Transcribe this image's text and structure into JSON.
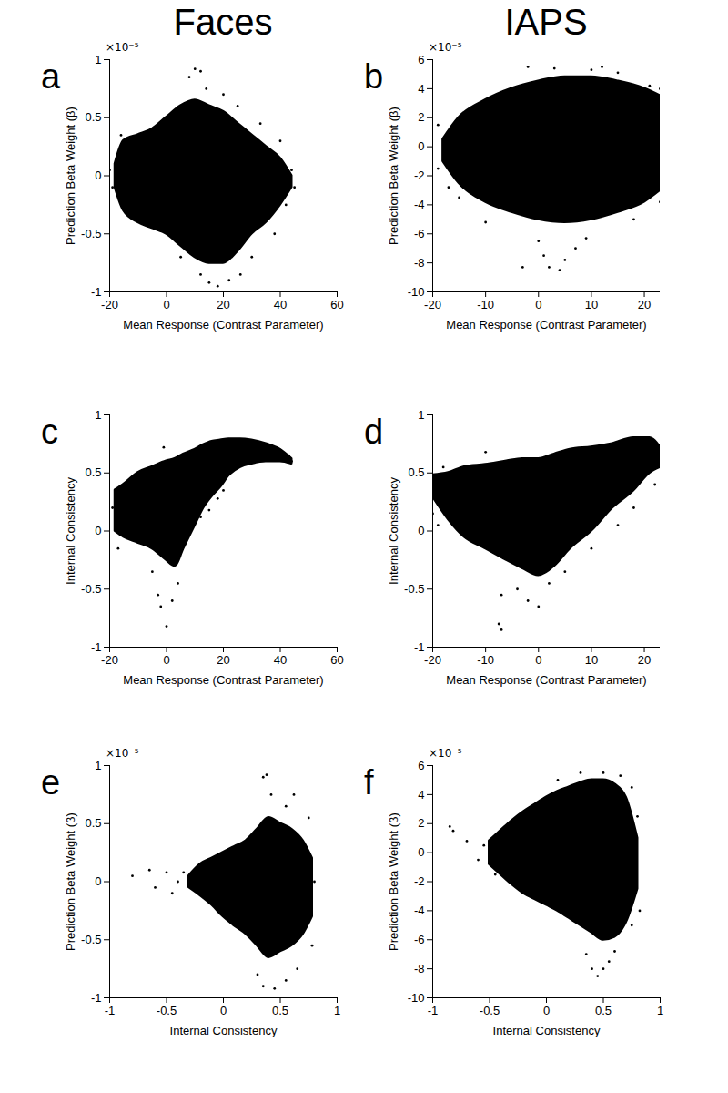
{
  "chart_data": [
    {
      "type": "scatter",
      "panel_label": "a",
      "title": "Faces",
      "y_exponent": "×10⁻⁵",
      "x_label": "Mean Response (Contrast Parameter)",
      "y_label": "Prediction Beta Weight (β)",
      "color": "#000000",
      "xlim": [
        -20,
        60
      ],
      "xticks": [
        -20,
        0,
        20,
        40,
        60
      ],
      "ylim": [
        -1,
        1
      ],
      "yticks": [
        -1,
        -0.5,
        0,
        0.5,
        1
      ],
      "cloud": {
        "x": [
          -18,
          -15,
          -10,
          -5,
          0,
          5,
          10,
          15,
          20,
          25,
          30,
          35,
          40,
          44
        ],
        "y_low": [
          -0.1,
          -0.3,
          -0.4,
          -0.45,
          -0.5,
          -0.6,
          -0.7,
          -0.75,
          -0.75,
          -0.65,
          -0.5,
          -0.4,
          -0.25,
          -0.1
        ],
        "y_high": [
          0.1,
          0.3,
          0.35,
          0.4,
          0.5,
          0.6,
          0.65,
          0.6,
          0.55,
          0.45,
          0.35,
          0.25,
          0.15,
          0.0
        ]
      },
      "points": {
        "x": [
          8,
          10,
          12,
          14,
          20,
          25,
          33,
          40,
          44,
          45,
          12,
          15,
          18,
          22,
          26,
          30,
          -16,
          -20,
          -19,
          38,
          5,
          42
        ],
        "y": [
          0.85,
          0.92,
          0.9,
          0.75,
          0.7,
          0.6,
          0.45,
          0.3,
          0.05,
          -0.1,
          -0.85,
          -0.92,
          -0.95,
          -0.9,
          -0.85,
          -0.7,
          0.35,
          0.05,
          -0.1,
          -0.5,
          -0.7,
          -0.25
        ]
      }
    },
    {
      "type": "scatter",
      "panel_label": "b",
      "title": "IAPS",
      "y_exponent": "×10⁻⁵",
      "x_label": "Mean Response (Contrast Parameter)",
      "y_label": "Prediction Beta Weight (β)",
      "color": "#000000",
      "xlim": [
        -20,
        23
      ],
      "xticks": [
        -20,
        -10,
        0,
        10,
        20
      ],
      "ylim": [
        -10,
        6
      ],
      "yticks": [
        -10,
        -8,
        -6,
        -4,
        -2,
        0,
        2,
        4,
        6
      ],
      "cloud": {
        "x": [
          -18,
          -15,
          -10,
          -5,
          0,
          5,
          10,
          15,
          20,
          23
        ],
        "y_low": [
          -1,
          -2.5,
          -3.8,
          -4.5,
          -5,
          -5.2,
          -5,
          -4.5,
          -3.8,
          -3
        ],
        "y_high": [
          0.5,
          2,
          3.2,
          4,
          4.5,
          4.8,
          4.8,
          4.5,
          4,
          3.5
        ]
      },
      "points": {
        "x": [
          -19,
          -19,
          -17,
          -15,
          -2,
          3,
          10,
          12,
          15,
          21,
          23,
          23,
          0,
          1,
          2,
          4,
          5,
          7,
          -3,
          9,
          -10,
          18
        ],
        "y": [
          1.5,
          -1.5,
          -2.8,
          -3.5,
          5.5,
          5.4,
          5.3,
          5.5,
          5.1,
          4.2,
          4,
          -3.8,
          -6.5,
          -7.5,
          -8.3,
          -8.5,
          -7.8,
          -7,
          -8.3,
          -6.3,
          -5.2,
          -5
        ]
      }
    },
    {
      "type": "scatter",
      "panel_label": "c",
      "x_label": "Mean Response (Contrast Parameter)",
      "y_label": "Internal Consistency",
      "color": "#000000",
      "xlim": [
        -20,
        60
      ],
      "xticks": [
        -20,
        0,
        20,
        40,
        60
      ],
      "ylim": [
        -1,
        1
      ],
      "yticks": [
        -1,
        -0.5,
        0,
        0.5,
        1
      ],
      "cloud": {
        "x": [
          -18,
          -15,
          -10,
          -5,
          0,
          3,
          6,
          10,
          13,
          16,
          19,
          22,
          26,
          30,
          35,
          40,
          44
        ],
        "y_low": [
          0.0,
          -0.05,
          -0.1,
          -0.15,
          -0.25,
          -0.3,
          -0.15,
          0.05,
          0.2,
          0.3,
          0.38,
          0.48,
          0.55,
          0.58,
          0.6,
          0.6,
          0.58
        ],
        "y_high": [
          0.35,
          0.4,
          0.5,
          0.55,
          0.6,
          0.62,
          0.66,
          0.7,
          0.74,
          0.77,
          0.78,
          0.79,
          0.79,
          0.78,
          0.75,
          0.7,
          0.62
        ]
      },
      "points": {
        "x": [
          -19,
          -17,
          -3,
          -2,
          0,
          2,
          4,
          -5,
          -1,
          9,
          12,
          15,
          18,
          20,
          44,
          43
        ],
        "y": [
          0.2,
          -0.15,
          -0.55,
          -0.65,
          -0.82,
          -0.6,
          -0.45,
          -0.35,
          0.72,
          0.08,
          0.12,
          0.18,
          0.28,
          0.35,
          0.6,
          0.65
        ]
      }
    },
    {
      "type": "scatter",
      "panel_label": "d",
      "x_label": "Mean Response (Contrast Parameter)",
      "y_label": "Internal Consistency",
      "color": "#000000",
      "xlim": [
        -20,
        23
      ],
      "xticks": [
        -20,
        -10,
        0,
        10,
        20
      ],
      "ylim": [
        -1,
        1
      ],
      "yticks": [
        -1,
        -0.5,
        0,
        0.5,
        1
      ],
      "cloud": {
        "x": [
          -20,
          -17,
          -14,
          -10,
          -6,
          -3,
          0,
          3,
          6,
          10,
          14,
          18,
          21,
          23
        ],
        "y_low": [
          0.3,
          0.1,
          -0.05,
          -0.15,
          -0.25,
          -0.32,
          -0.38,
          -0.3,
          -0.15,
          0.0,
          0.2,
          0.35,
          0.5,
          0.55
        ],
        "y_high": [
          0.48,
          0.5,
          0.55,
          0.57,
          0.6,
          0.62,
          0.62,
          0.66,
          0.7,
          0.72,
          0.75,
          0.8,
          0.8,
          0.72
        ]
      },
      "points": {
        "x": [
          -20,
          -19,
          -18,
          -10,
          -7,
          -7.5,
          -7,
          -4,
          -2,
          0,
          2,
          5,
          10,
          15,
          18,
          22
        ],
        "y": [
          0.15,
          0.05,
          0.55,
          0.68,
          -0.55,
          -0.8,
          -0.85,
          -0.5,
          -0.6,
          -0.65,
          -0.45,
          -0.35,
          -0.15,
          0.05,
          0.2,
          0.4
        ]
      }
    },
    {
      "type": "scatter",
      "panel_label": "e",
      "y_exponent": "×10⁻⁵",
      "x_label": "Internal Consistency",
      "y_label": "Prediction Beta Weight (β)",
      "color": "#000000",
      "xlim": [
        -1,
        1
      ],
      "xticks": [
        -1,
        -0.5,
        0,
        0.5,
        1
      ],
      "ylim": [
        -1,
        1
      ],
      "yticks": [
        -1,
        -0.5,
        0,
        0.5,
        1
      ],
      "cloud": {
        "x": [
          -0.3,
          -0.2,
          -0.1,
          0,
          0.1,
          0.2,
          0.3,
          0.4,
          0.5,
          0.6,
          0.7,
          0.78
        ],
        "y_low": [
          -0.05,
          -0.12,
          -0.2,
          -0.3,
          -0.38,
          -0.45,
          -0.55,
          -0.65,
          -0.6,
          -0.55,
          -0.45,
          -0.3
        ],
        "y_high": [
          0.05,
          0.15,
          0.2,
          0.25,
          0.3,
          0.35,
          0.45,
          0.55,
          0.5,
          0.45,
          0.35,
          0.2
        ]
      },
      "points": {
        "x": [
          -0.8,
          -0.65,
          -0.6,
          -0.5,
          -0.45,
          -0.4,
          -0.35,
          0.35,
          0.38,
          0.42,
          0.55,
          0.62,
          0.75,
          0.3,
          0.35,
          0.45,
          0.55,
          0.65,
          0.78,
          0.8
        ],
        "y": [
          0.05,
          0.1,
          -0.05,
          0.08,
          -0.1,
          0.0,
          0.08,
          0.9,
          0.92,
          0.75,
          0.65,
          0.75,
          0.55,
          -0.8,
          -0.9,
          -0.92,
          -0.85,
          -0.75,
          -0.55,
          0.0
        ]
      }
    },
    {
      "type": "scatter",
      "panel_label": "f",
      "y_exponent": "×10⁻⁵",
      "x_label": "Internal Consistency",
      "y_label": "Prediction Beta Weight (β)",
      "color": "#000000",
      "xlim": [
        -1,
        1
      ],
      "xticks": [
        -1,
        -0.5,
        0,
        0.5,
        1
      ],
      "ylim": [
        -10,
        6
      ],
      "yticks": [
        -10,
        -8,
        -6,
        -4,
        -2,
        0,
        2,
        4,
        6
      ],
      "cloud": {
        "x": [
          -0.5,
          -0.4,
          -0.3,
          -0.2,
          -0.1,
          0,
          0.1,
          0.2,
          0.3,
          0.4,
          0.5,
          0.6,
          0.7,
          0.8
        ],
        "y_low": [
          -0.8,
          -1.5,
          -2.2,
          -2.8,
          -3.2,
          -3.6,
          -4,
          -4.5,
          -5,
          -5.5,
          -6,
          -5.8,
          -4.8,
          -2.5
        ],
        "y_high": [
          0.8,
          1.5,
          2.2,
          2.8,
          3.3,
          3.8,
          4.2,
          4.5,
          4.8,
          5,
          5,
          4.7,
          3.8,
          1
        ]
      },
      "points": {
        "x": [
          -0.85,
          -0.82,
          -0.7,
          -0.6,
          -0.55,
          -0.45,
          0.1,
          0.3,
          0.5,
          0.65,
          0.75,
          0.8,
          0.35,
          0.4,
          0.45,
          0.5,
          0.55,
          0.6,
          0.75,
          0.82
        ],
        "y": [
          1.8,
          1.5,
          0.8,
          -0.5,
          0.5,
          -1.5,
          5,
          5.5,
          5.5,
          5.3,
          4.5,
          2.5,
          -7,
          -8,
          -8.5,
          -8,
          -7.5,
          -6.8,
          -5,
          -4
        ]
      }
    }
  ]
}
